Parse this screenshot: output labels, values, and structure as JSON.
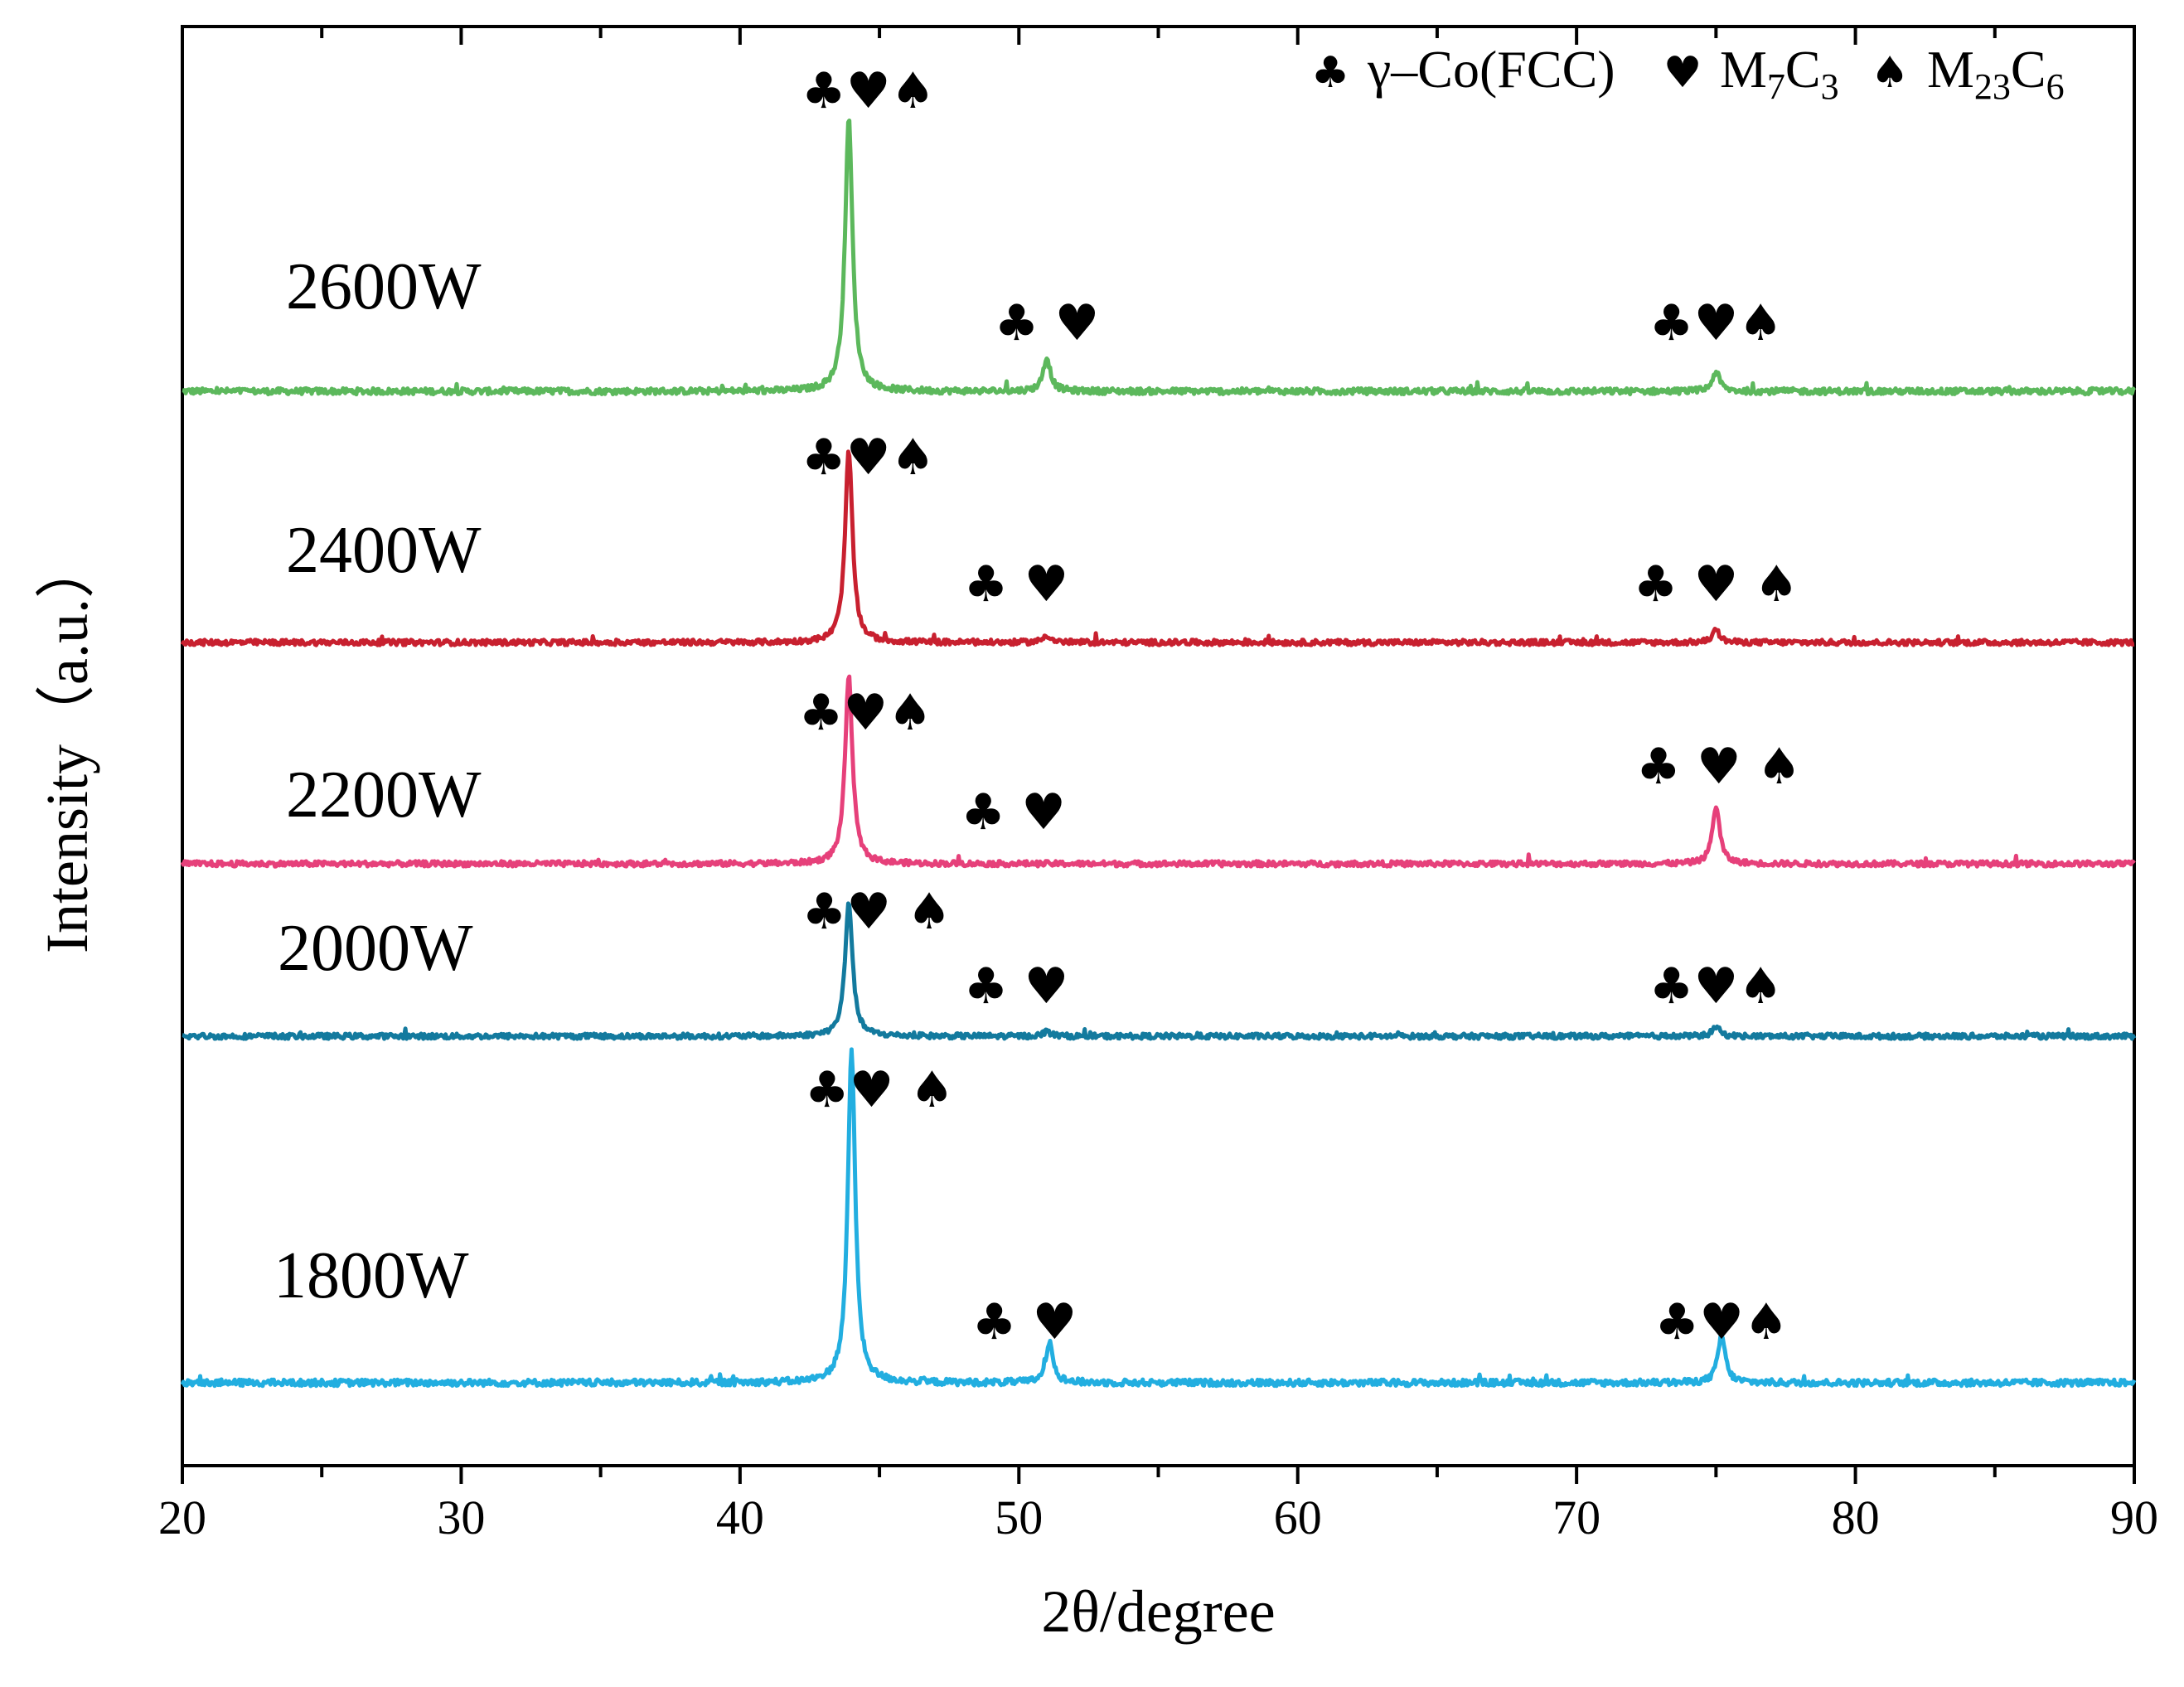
{
  "chart_data": {
    "type": "line",
    "title": "",
    "xlabel": "2θ/degree",
    "ylabel": "Intensity（a.u.）",
    "xlim": [
      20,
      90
    ],
    "x_ticks": [
      "20",
      "30",
      "40",
      "50",
      "60",
      "70",
      "80",
      "90"
    ],
    "y_ticks": [],
    "legend": [
      {
        "symbol": "♣",
        "name": "club",
        "label": "γ–Co(FCC)"
      },
      {
        "symbol": "♥",
        "name": "heart",
        "label": "M7C3",
        "base": "M",
        "sub": "7",
        "base2": "C",
        "sub2": "3"
      },
      {
        "symbol": "♠",
        "name": "spade",
        "label": "M23C6",
        "base": "M",
        "sub": "23",
        "base2": "C",
        "sub2": "6"
      }
    ],
    "series": [
      {
        "name": "2600W",
        "color": "#5cb85c",
        "baseline": 0.74,
        "peaks": [
          {
            "x": 43.9,
            "h": 0.98
          },
          {
            "x": 51.0,
            "h": 0.12
          },
          {
            "x": 75.0,
            "h": 0.07
          }
        ],
        "markers": [
          {
            "x": 44.6,
            "text": "♣♥♠"
          },
          {
            "x": 51.0,
            "text": "♣ ♥"
          },
          {
            "x": 75.0,
            "text": "♣♥♠"
          }
        ]
      },
      {
        "name": "2400W",
        "color": "#c8202f",
        "baseline": 0.74,
        "peaks": [
          {
            "x": 43.9,
            "h": 0.78
          },
          {
            "x": 51.0,
            "h": 0.03
          },
          {
            "x": 75.0,
            "h": 0.05
          }
        ],
        "markers": [
          {
            "x": 44.6,
            "text": "♣♥♠"
          },
          {
            "x": 49.9,
            "text": "♣ ♥"
          },
          {
            "x": 75.0,
            "text": "♣ ♥ ♠"
          }
        ]
      },
      {
        "name": "2200W",
        "color": "#e6407a",
        "baseline": 0.74,
        "peaks": [
          {
            "x": 43.9,
            "h": 0.78
          },
          {
            "x": 75.0,
            "h": 0.24
          }
        ],
        "markers": [
          {
            "x": 44.5,
            "text": "♣♥♠"
          },
          {
            "x": 49.8,
            "text": "♣ ♥"
          },
          {
            "x": 75.1,
            "text": "♣ ♥ ♠"
          }
        ]
      },
      {
        "name": "2000W",
        "color": "#137a9e",
        "baseline": 0.74,
        "peaks": [
          {
            "x": 43.9,
            "h": 0.56
          },
          {
            "x": 51.0,
            "h": 0.02
          },
          {
            "x": 75.0,
            "h": 0.04
          }
        ],
        "markers": [
          {
            "x": 44.9,
            "text": "♣♥ ♠"
          },
          {
            "x": 49.9,
            "text": "♣ ♥"
          },
          {
            "x": 75.0,
            "text": "♣♥♠"
          }
        ]
      },
      {
        "name": "1800W",
        "color": "#22aee0",
        "baseline": 0.74,
        "peaks": [
          {
            "x": 44.0,
            "h": 1.12
          },
          {
            "x": 51.1,
            "h": 0.14
          },
          {
            "x": 75.2,
            "h": 0.16
          }
        ],
        "markers": [
          {
            "x": 45.0,
            "text": "♣♥ ♠"
          },
          {
            "x": 50.2,
            "text": "♣ ♥"
          },
          {
            "x": 75.2,
            "text": "♣♥♠"
          }
        ]
      }
    ]
  }
}
